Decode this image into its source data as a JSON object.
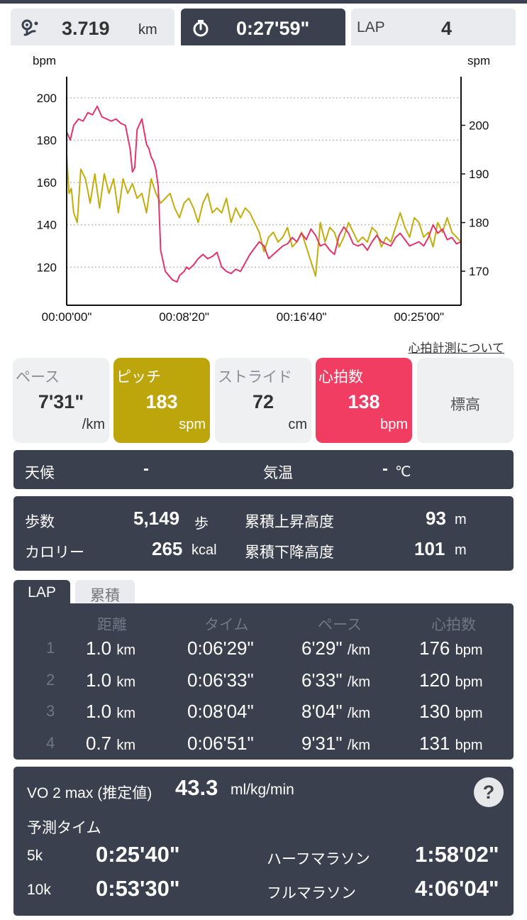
{
  "header": {
    "distance_value": "3.719",
    "distance_unit": "km",
    "time_value": "0:27'59\"",
    "lap_label": "LAP",
    "lap_value": "4",
    "distance_icon": "route-icon",
    "time_icon": "stopwatch-icon"
  },
  "chart_data": {
    "type": "line",
    "ylabel_left": "bpm",
    "ylabel_right": "spm",
    "x_ticks": [
      "00:00'00\"",
      "00:08'20\"",
      "00:16'40\"",
      "00:25'00\""
    ],
    "x_range_sec": [
      0,
      1679
    ],
    "y_left_ticks": [
      120,
      140,
      160,
      180,
      200
    ],
    "y_left_range": [
      102,
      210
    ],
    "y_right_ticks": [
      170,
      180,
      190,
      200
    ],
    "y_right_range": [
      163,
      210
    ],
    "grid": true,
    "series": [
      {
        "name": "心拍数",
        "axis": "left",
        "color": "#e5336b",
        "x": [
          0,
          15,
          30,
          50,
          70,
          90,
          110,
          130,
          150,
          170,
          190,
          210,
          230,
          250,
          270,
          280,
          290,
          300,
          320,
          340,
          350,
          360,
          370,
          380,
          390,
          400,
          420,
          450,
          470,
          480,
          490,
          500,
          510,
          520,
          540,
          560,
          580,
          600,
          620,
          640,
          660,
          680,
          700,
          720,
          740,
          760,
          780,
          800,
          820,
          840,
          860,
          880,
          900,
          920,
          940,
          960,
          980,
          1000,
          1020,
          1040,
          1060,
          1080,
          1100,
          1120,
          1140,
          1160,
          1180,
          1200,
          1220,
          1240,
          1260,
          1280,
          1300,
          1320,
          1340,
          1360,
          1380,
          1400,
          1420,
          1440,
          1460,
          1480,
          1500,
          1520,
          1540,
          1560,
          1580,
          1600,
          1620,
          1640,
          1660,
          1679
        ],
        "values": [
          184,
          180,
          187,
          190,
          189,
          193,
          192,
          196,
          191,
          190,
          189,
          190,
          188,
          187,
          176,
          165,
          167,
          185,
          190,
          178,
          176,
          172,
          170,
          166,
          158,
          128,
          118,
          114,
          113,
          116,
          117,
          118,
          120,
          119,
          121,
          124,
          126,
          124,
          125,
          127,
          120,
          118,
          117,
          119,
          118,
          122,
          126,
          129,
          132,
          130,
          124,
          126,
          128,
          130,
          131,
          134,
          132,
          136,
          133,
          138,
          135,
          130,
          131,
          128,
          126,
          135,
          139,
          136,
          131,
          130,
          131,
          128,
          132,
          135,
          132,
          131,
          130,
          134,
          136,
          133,
          130,
          131,
          132,
          130,
          134,
          140,
          136,
          138,
          133,
          134,
          131,
          132
        ]
      },
      {
        "name": "ピッチ",
        "axis": "right",
        "color": "#c3ad0c",
        "x": [
          0,
          10,
          20,
          30,
          45,
          60,
          80,
          100,
          120,
          140,
          160,
          180,
          200,
          220,
          240,
          260,
          280,
          300,
          320,
          340,
          360,
          380,
          400,
          420,
          440,
          460,
          480,
          500,
          520,
          540,
          560,
          580,
          600,
          620,
          640,
          660,
          680,
          700,
          720,
          740,
          760,
          780,
          800,
          820,
          840,
          860,
          880,
          900,
          920,
          940,
          960,
          980,
          1000,
          1020,
          1040,
          1060,
          1080,
          1100,
          1120,
          1140,
          1160,
          1180,
          1200,
          1220,
          1240,
          1260,
          1280,
          1300,
          1320,
          1340,
          1360,
          1380,
          1400,
          1420,
          1440,
          1460,
          1480,
          1500,
          1520,
          1540,
          1560,
          1580,
          1600,
          1620,
          1640,
          1660,
          1679
        ],
        "values": [
          194,
          186,
          187,
          182,
          180,
          191,
          189,
          184,
          190,
          183,
          190,
          186,
          189,
          182,
          189,
          186,
          188,
          185,
          186,
          182,
          189,
          186,
          184,
          185,
          186,
          183,
          181,
          184,
          185,
          183,
          180,
          184,
          186,
          182,
          183,
          182,
          185,
          180,
          183,
          181,
          183,
          182,
          180,
          178,
          174,
          177,
          178,
          176,
          177,
          179,
          175,
          176,
          178,
          175,
          172,
          169,
          180,
          176,
          179,
          178,
          175,
          177,
          180,
          178,
          176,
          177,
          176,
          179,
          178,
          175,
          177,
          176,
          179,
          182,
          179,
          177,
          181,
          180,
          177,
          178,
          175,
          180,
          178,
          181,
          178,
          177,
          176
        ]
      }
    ]
  },
  "hr_link": "心拍計測について",
  "cards": [
    {
      "title": "ペース",
      "value": "7'31\"",
      "unit": "/km"
    },
    {
      "title": "ピッチ",
      "value": "183",
      "unit": "spm"
    },
    {
      "title": "ストライド",
      "value": "72",
      "unit": "cm"
    },
    {
      "title": "心拍数",
      "value": "138",
      "unit": "bpm"
    },
    {
      "title": "標高"
    }
  ],
  "weather": {
    "label": "天候",
    "value": "-",
    "temp_label": "気温",
    "temp_value": "-",
    "temp_unit": "℃"
  },
  "stats": {
    "steps_label": "歩数",
    "steps_value": "5,149",
    "steps_unit": "歩",
    "calories_label": "カロリー",
    "calories_value": "265",
    "calories_unit": "kcal",
    "ascent_label": "累積上昇高度",
    "ascent_value": "93",
    "ascent_unit": "m",
    "descent_label": "累積下降高度",
    "descent_value": "101",
    "descent_unit": "m"
  },
  "lap_tabs": {
    "lap": "LAP",
    "total": "累積"
  },
  "lap_table": {
    "headers": [
      "距離",
      "タイム",
      "ペース",
      "心拍数"
    ],
    "rows": [
      {
        "idx": "1",
        "dist": "1.0",
        "dist_unit": "km",
        "time": "0:06'29\"",
        "pace": "6'29\"",
        "pace_unit": "/km",
        "hr": "176",
        "hr_unit": "bpm"
      },
      {
        "idx": "2",
        "dist": "1.0",
        "dist_unit": "km",
        "time": "0:06'33\"",
        "pace": "6'33\"",
        "pace_unit": "/km",
        "hr": "120",
        "hr_unit": "bpm"
      },
      {
        "idx": "3",
        "dist": "1.0",
        "dist_unit": "km",
        "time": "0:08'04\"",
        "pace": "8'04\"",
        "pace_unit": "/km",
        "hr": "130",
        "hr_unit": "bpm"
      },
      {
        "idx": "4",
        "dist": "0.7",
        "dist_unit": "km",
        "time": "0:06'51\"",
        "pace": "9'31\"",
        "pace_unit": "/km",
        "hr": "131",
        "hr_unit": "bpm"
      }
    ]
  },
  "vo2": {
    "label": "VO 2 max (推定値)",
    "value": "43.3",
    "unit": "ml/kg/min",
    "help": "?",
    "predict_title": "予測タイム",
    "p5k_label": "5k",
    "p5k_value": "0:25'40\"",
    "p10k_label": "10k",
    "p10k_value": "0:53'30\"",
    "half_label": "ハーフマラソン",
    "half_value": "1:58'02\"",
    "full_label": "フルマラソン",
    "full_value": "4:06'04\""
  }
}
